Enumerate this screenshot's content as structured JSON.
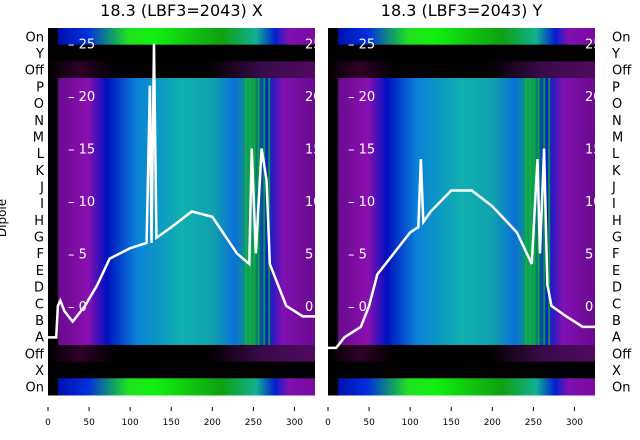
{
  "chart_data": [
    {
      "type": "heatmap",
      "title": "18.3 (LBF3=2043) X",
      "ylabel": "Dipole",
      "row_labels": [
        "On",
        "Y",
        "Off",
        "P",
        "O",
        "N",
        "M",
        "L",
        "K",
        "J",
        "I",
        "H",
        "G",
        "F",
        "E",
        "D",
        "C",
        "B",
        "A",
        "Off",
        "X",
        "On"
      ],
      "xticks": [
        0,
        50,
        100,
        150,
        200,
        250,
        300
      ],
      "xlim": [
        0,
        325
      ],
      "inner_yticks": [
        0,
        5,
        10,
        15,
        20,
        25
      ],
      "inner_ylim": [
        -8.5,
        26.5
      ],
      "overlay_curve": [
        [
          0,
          -3
        ],
        [
          10,
          -3
        ],
        [
          12,
          0
        ],
        [
          15,
          0.5
        ],
        [
          20,
          -0.5
        ],
        [
          30,
          -1.5
        ],
        [
          45,
          0
        ],
        [
          60,
          2
        ],
        [
          75,
          4.5
        ],
        [
          100,
          5.5
        ],
        [
          120,
          6
        ],
        [
          124,
          21
        ],
        [
          126,
          6
        ],
        [
          129,
          25
        ],
        [
          132,
          6.5
        ],
        [
          150,
          7.5
        ],
        [
          175,
          9
        ],
        [
          200,
          8.5
        ],
        [
          230,
          5
        ],
        [
          245,
          4
        ],
        [
          248,
          15
        ],
        [
          253,
          5
        ],
        [
          260,
          15
        ],
        [
          266,
          12
        ],
        [
          270,
          4
        ],
        [
          280,
          2
        ],
        [
          290,
          0
        ],
        [
          300,
          -0.5
        ],
        [
          310,
          -1
        ],
        [
          325,
          -1
        ]
      ]
    },
    {
      "type": "heatmap",
      "title": "18.3 (LBF3=2043) Y",
      "row_labels": [
        "On",
        "Y",
        "Off",
        "P",
        "O",
        "N",
        "M",
        "L",
        "K",
        "J",
        "I",
        "H",
        "G",
        "F",
        "E",
        "D",
        "C",
        "B",
        "A",
        "Off",
        "X",
        "On"
      ],
      "xticks": [
        0,
        50,
        100,
        150,
        200,
        250,
        300
      ],
      "xlim": [
        0,
        325
      ],
      "inner_yticks": [
        0,
        5,
        10,
        15,
        20,
        25
      ],
      "inner_ylim": [
        -8.5,
        26.5
      ],
      "overlay_curve": [
        [
          0,
          -4
        ],
        [
          10,
          -4
        ],
        [
          20,
          -3
        ],
        [
          40,
          -2
        ],
        [
          50,
          0
        ],
        [
          60,
          3
        ],
        [
          80,
          5
        ],
        [
          100,
          7
        ],
        [
          110,
          7.5
        ],
        [
          113,
          14
        ],
        [
          116,
          8
        ],
        [
          125,
          9
        ],
        [
          150,
          11
        ],
        [
          175,
          11
        ],
        [
          200,
          9.5
        ],
        [
          230,
          7
        ],
        [
          248,
          4
        ],
        [
          255,
          14
        ],
        [
          258,
          5
        ],
        [
          263,
          15
        ],
        [
          267,
          2
        ],
        [
          272,
          0
        ],
        [
          290,
          -1
        ],
        [
          310,
          -2
        ],
        [
          325,
          -2
        ]
      ]
    }
  ],
  "colors": {
    "purple": "#7a0aa0",
    "blue": "#0020d0",
    "cyan": "#0a9ad0",
    "teal": "#10b0a0",
    "green": "#10f010",
    "black": "#000000",
    "curve": "#ffffff"
  }
}
